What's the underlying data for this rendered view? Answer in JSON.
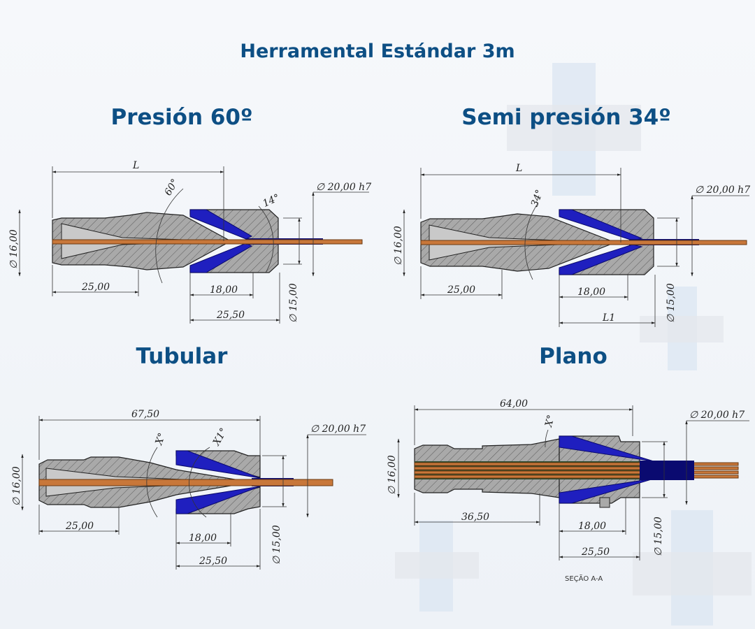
{
  "title": "Herramental Estándar 3m",
  "sections": {
    "presion": {
      "label": "Presión 60º",
      "dims": {
        "L": "L",
        "angle1": "60°",
        "angle2": "14°",
        "dia_top": "∅ 20,00 h7",
        "dia_left": "∅ 16,00",
        "d1": "25,00",
        "d2": "18,00",
        "d3": "25,50",
        "dia_right": "∅ 15,00"
      }
    },
    "semi": {
      "label": "Semi presión 34º",
      "dims": {
        "L": "L",
        "angle1": "34°",
        "dia_top": "∅ 20,00 h7",
        "dia_left": "∅ 16,00",
        "d1": "25,00",
        "d2": "18,00",
        "d3": "L1",
        "dia_right": "∅ 15,00"
      }
    },
    "tubular": {
      "label": "Tubular",
      "dims": {
        "L": "67,50",
        "angle1": "X°",
        "angle2": "X1°",
        "dia_top": "∅ 20,00 h7",
        "dia_left": "∅ 16,00",
        "d1": "25,00",
        "d2": "18,00",
        "d3": "25,50",
        "dia_right": "∅ 15,00"
      }
    },
    "plano": {
      "label": "Plano",
      "dims": {
        "L": "64,00",
        "angle1": "X°",
        "dia_top": "∅ 20,00 h7",
        "dia_left": "∅ 16,00",
        "d1": "36,50",
        "d2": "18,00",
        "d3": "25,50",
        "dia_right": "∅ 15,00"
      },
      "caption": "SEÇÃO A-A"
    }
  },
  "colors": {
    "accent": "#0d4f84",
    "tool_blue": "#1f1fbf",
    "wire": "#c8773a",
    "steel": "#a8a8a8"
  }
}
